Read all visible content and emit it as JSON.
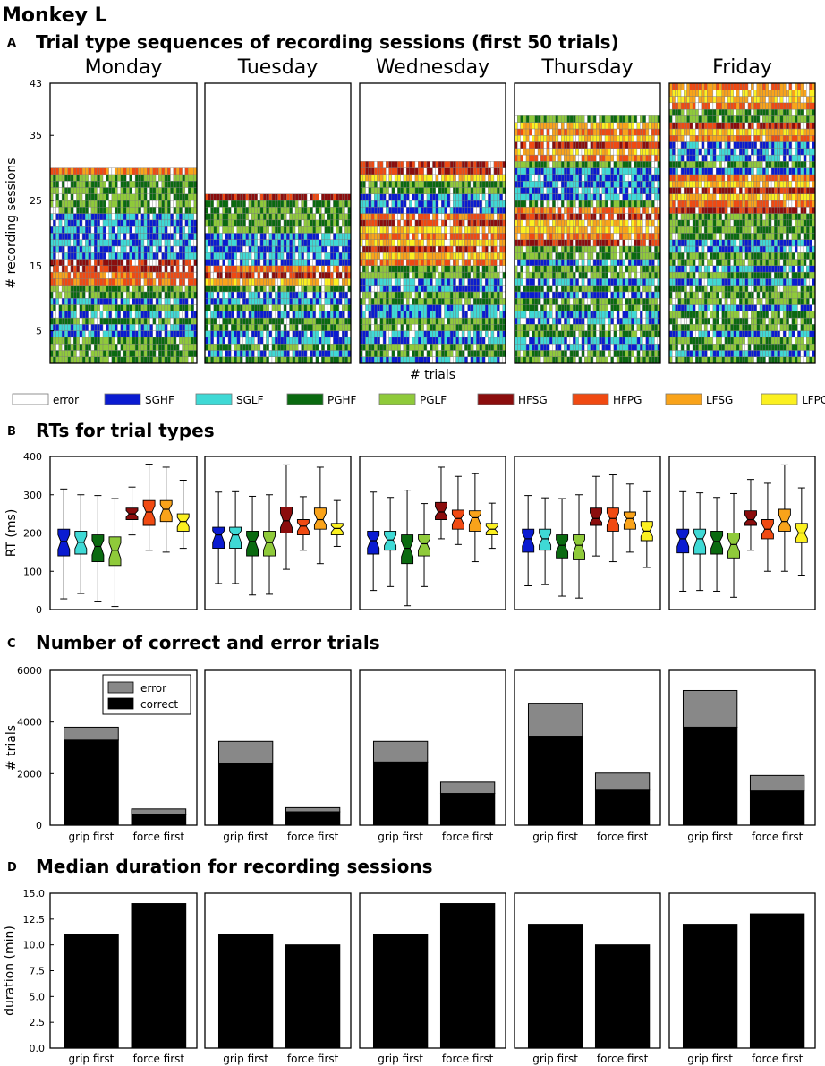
{
  "figure_title": "Monkey L",
  "panels": {
    "A": {
      "letter": "A",
      "title": "Trial type sequences of recording sessions (first 50 trials)"
    },
    "B": {
      "letter": "B",
      "title": "RTs for trial types"
    },
    "C": {
      "letter": "C",
      "title": "Number of correct and error trials"
    },
    "D": {
      "letter": "D",
      "title": "Median duration for recording sessions"
    }
  },
  "days": [
    "Monday",
    "Tuesday",
    "Wednesday",
    "Thursday",
    "Friday"
  ],
  "legend": [
    {
      "label": "error",
      "color": "#ffffff"
    },
    {
      "label": "SGHF",
      "color": "#0a1bd1"
    },
    {
      "label": "SGLF",
      "color": "#3fd9d5"
    },
    {
      "label": "PGHF",
      "color": "#0a6a10"
    },
    {
      "label": "PGLF",
      "color": "#8fca3a"
    },
    {
      "label": "HFSG",
      "color": "#8b0d0d"
    },
    {
      "label": "HFPG",
      "color": "#f04a12"
    },
    {
      "label": "LFSG",
      "color": "#f9a31a"
    },
    {
      "label": "LFPG",
      "color": "#fbf020"
    }
  ],
  "chart_data": [
    {
      "id": "A",
      "type": "heatmap",
      "title": "Trial type sequences of recording sessions (first 50 trials)",
      "xlabel": "# trials",
      "ylabel": "# recording sessions",
      "ylim": [
        0,
        43
      ],
      "yticks": [
        5,
        15,
        25,
        35,
        43
      ],
      "trials_per_session": 50,
      "sessions_per_day": [
        30,
        26,
        31,
        38,
        43
      ],
      "row_types": [
        [
          "PGLF",
          "PGHF",
          "PGLF",
          "PGHF",
          "SGHF",
          "SGLF",
          "PGHF",
          "SGHF",
          "PGLF",
          "SGHF",
          "PGHF",
          "PGLF",
          "HFPG",
          "HFPG",
          "HFSG",
          "HFSG",
          "SGLF",
          "SGHF",
          "SGLF",
          "SGHF",
          "SGLF",
          "SGHF",
          "SGLF",
          "PGHF",
          "PGLF",
          "PGHF",
          "PGLF",
          "PGHF",
          "PGLF",
          "HFPG"
        ],
        [
          "PGLF",
          "SGHF",
          "PGHF",
          "SGLF",
          "SGHF",
          "PGLF",
          "PGHF",
          "SGHF",
          "PGLF",
          "SGLF",
          "SGHF",
          "PGHF",
          "LFSG",
          "HFSG",
          "HFPG",
          "SGHF",
          "SGLF",
          "SGHF",
          "SGLF",
          "SGHF",
          "PGLF",
          "PGHF",
          "PGLF",
          "PGHF",
          "PGHF",
          "HFSG"
        ],
        [
          "SGHF",
          "PGHF",
          "PGLF",
          "SGHF",
          "SGLF",
          "PGHF",
          "PGLF",
          "SGHF",
          "SGLF",
          "PGHF",
          "PGLF",
          "SGHF",
          "SGLF",
          "PGLF",
          "PGHF",
          "HFPG",
          "LFSG",
          "HFSG",
          "LFPG",
          "HFPG",
          "LFSG",
          "HFSG",
          "HFPG",
          "SGHF",
          "SGLF",
          "SGHF",
          "PGLF",
          "PGHF",
          "LFPG",
          "HFSG",
          "HFSG"
        ],
        [
          "PGLF",
          "PGHF",
          "SGHF",
          "SGLF",
          "PGHF",
          "PGLF",
          "SGHF",
          "SGLF",
          "PGHF",
          "PGLF",
          "SGHF",
          "PGHF",
          "SGLF",
          "PGLF",
          "PGHF",
          "SGHF",
          "PGLF",
          "PGLF",
          "HFSG",
          "HFPG",
          "LFSG",
          "LFPG",
          "HFSG",
          "HFPG",
          "PGHF",
          "SGLF",
          "SGHF",
          "SGLF",
          "SGHF",
          "SGLF",
          "PGHF",
          "HFPG",
          "LFSG",
          "HFSG",
          "LFPG",
          "HFPG",
          "LFSG",
          "PGLF"
        ],
        [
          "PGLF",
          "SGHF",
          "PGHF",
          "PGLF",
          "SGHF",
          "PGHF",
          "PGLF",
          "PGHF",
          "SGHF",
          "PGLF",
          "PGHF",
          "PGLF",
          "SGHF",
          "PGHF",
          "SGLF",
          "PGLF",
          "PGHF",
          "SGHF",
          "SGLF",
          "PGHF",
          "PGLF",
          "PGHF",
          "PGLF",
          "HFSG",
          "HFPG",
          "LFSG",
          "HFSG",
          "LFPG",
          "HFPG",
          "SGHF",
          "PGHF",
          "SGHF",
          "SGLF",
          "SGHF",
          "HFPG",
          "LFSG",
          "HFSG",
          "PGLF",
          "PGHF",
          "HFPG",
          "LFSG",
          "LFPG",
          "HFPG"
        ]
      ]
    },
    {
      "id": "B",
      "type": "box",
      "title": "RTs for trial types",
      "ylabel": "RT (ms)",
      "ylim": [
        0,
        400
      ],
      "yticks": [
        0,
        100,
        200,
        300,
        400
      ],
      "categories": [
        "SGHF",
        "SGLF",
        "PGHF",
        "PGLF",
        "HFSG",
        "HFPG",
        "LFSG",
        "LFPG"
      ],
      "boxes": [
        [
          [
            28,
            140,
            178,
            210,
            315
          ],
          [
            42,
            145,
            176,
            205,
            300
          ],
          [
            20,
            125,
            165,
            195,
            298
          ],
          [
            8,
            115,
            155,
            190,
            290
          ],
          [
            195,
            235,
            250,
            265,
            320
          ],
          [
            155,
            220,
            255,
            285,
            380
          ],
          [
            150,
            230,
            262,
            285,
            372
          ],
          [
            160,
            205,
            230,
            250,
            338
          ]
        ],
        [
          [
            68,
            160,
            195,
            215,
            307
          ],
          [
            68,
            160,
            195,
            215,
            308
          ],
          [
            38,
            140,
            178,
            205,
            296
          ],
          [
            40,
            140,
            175,
            205,
            300
          ],
          [
            105,
            200,
            232,
            268,
            378
          ],
          [
            155,
            195,
            218,
            235,
            295
          ],
          [
            120,
            210,
            235,
            265,
            372
          ],
          [
            165,
            195,
            212,
            225,
            285
          ]
        ],
        [
          [
            50,
            145,
            180,
            205,
            307
          ],
          [
            60,
            155,
            182,
            205,
            293
          ],
          [
            10,
            120,
            160,
            195,
            312
          ],
          [
            60,
            140,
            172,
            195,
            277
          ],
          [
            185,
            235,
            255,
            280,
            372
          ],
          [
            170,
            210,
            238,
            260,
            348
          ],
          [
            125,
            205,
            240,
            258,
            355
          ],
          [
            160,
            195,
            210,
            225,
            278
          ]
        ],
        [
          [
            62,
            150,
            185,
            210,
            298
          ],
          [
            65,
            155,
            185,
            210,
            292
          ],
          [
            35,
            135,
            168,
            195,
            290
          ],
          [
            30,
            130,
            168,
            195,
            300
          ],
          [
            140,
            220,
            238,
            265,
            348
          ],
          [
            125,
            205,
            238,
            265,
            352
          ],
          [
            150,
            210,
            238,
            255,
            328
          ],
          [
            110,
            180,
            205,
            230,
            308
          ]
        ],
        [
          [
            48,
            148,
            185,
            210,
            308
          ],
          [
            50,
            145,
            185,
            210,
            305
          ],
          [
            48,
            145,
            178,
            205,
            293
          ],
          [
            32,
            135,
            170,
            200,
            303
          ],
          [
            155,
            220,
            235,
            258,
            340
          ],
          [
            100,
            185,
            210,
            235,
            330
          ],
          [
            100,
            205,
            230,
            262,
            378
          ],
          [
            90,
            175,
            200,
            225,
            318
          ]
        ]
      ]
    },
    {
      "id": "C",
      "type": "bar",
      "title": "Number of correct and error trials",
      "ylabel": "# trials",
      "ylim": [
        0,
        6000
      ],
      "yticks": [
        0,
        2000,
        4000,
        6000
      ],
      "categories": [
        "grip first",
        "force first"
      ],
      "stacked": true,
      "series": [
        {
          "name": "correct",
          "color": "#000000",
          "values": [
            [
              3300,
              400
            ],
            [
              2400,
              520
            ],
            [
              2450,
              1230
            ],
            [
              3450,
              1360
            ],
            [
              3800,
              1330
            ]
          ]
        },
        {
          "name": "error",
          "color": "#888888",
          "values": [
            [
              500,
              230
            ],
            [
              850,
              160
            ],
            [
              800,
              440
            ],
            [
              1280,
              660
            ],
            [
              1420,
              600
            ]
          ]
        }
      ],
      "legend_position": "top-left"
    },
    {
      "id": "D",
      "type": "bar",
      "title": "Median duration for recording sessions",
      "ylabel": "duration (min)",
      "ylim": [
        0,
        15
      ],
      "yticks": [
        "0.0",
        "2.5",
        "5.0",
        "7.5",
        "10.0",
        "12.5",
        "15.0"
      ],
      "categories": [
        "grip first",
        "force first"
      ],
      "values": [
        [
          11,
          14
        ],
        [
          11,
          10
        ],
        [
          11,
          14
        ],
        [
          12,
          10
        ],
        [
          12,
          13
        ]
      ]
    }
  ]
}
